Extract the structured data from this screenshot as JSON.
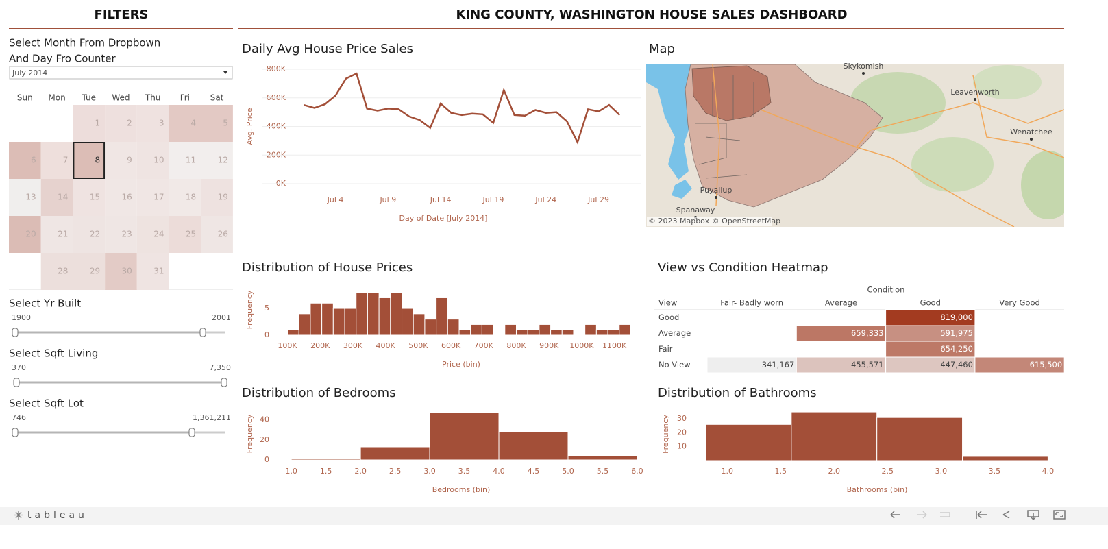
{
  "header": {
    "filters_title": "FILTERS",
    "title": "KING COUNTY, WASHINGTON HOUSE SALES DASHBOARD"
  },
  "filters": {
    "instruction": [
      "Select Month From Dropbown",
      "And Day Fro Counter"
    ],
    "month": "July 2014",
    "weekdays": [
      "Sun",
      "Mon",
      "Tue",
      "Wed",
      "Thu",
      "Fri",
      "Sat"
    ],
    "cells": [
      null,
      null,
      1,
      2,
      3,
      4,
      5,
      6,
      7,
      8,
      9,
      10,
      11,
      12,
      13,
      14,
      15,
      16,
      17,
      18,
      19,
      20,
      21,
      22,
      23,
      24,
      25,
      26,
      null,
      28,
      29,
      30,
      31
    ],
    "cell_colors": [
      null,
      null,
      "#eddddb",
      "#eee0de",
      "#efe2e0",
      "#e3c9c4",
      "#e3c9c4",
      "#dcbdb6",
      "#eedfdc",
      "#dcbdb6",
      "#f0e6e4",
      "#efe4e2",
      "#f2eeed",
      "#f2eeed",
      "#f0eeed",
      "#e6d2ce",
      "#efe3e1",
      "#f0e7e5",
      "#f0e6e4",
      "#f1e9e7",
      "#eee2e0",
      "#dbbcb5",
      "#efe6e4",
      "#eee4e2",
      "#efe6e4",
      "#eee3e0",
      "#ecdcd9",
      "#efe6e4",
      null,
      "#ecdfdc",
      "#ecdfdc",
      "#e3cbc6",
      "#efe4e2"
    ],
    "selected_day": 8,
    "sliders": [
      {
        "label": "Select Yr Built",
        "min": "1900",
        "max": "2001"
      },
      {
        "label": "Select Sqft Living",
        "min": "370",
        "max": "7,350"
      },
      {
        "label": "Select Sqft Lot",
        "min": "746",
        "max": "1,361,211"
      }
    ]
  },
  "chart_data": [
    {
      "type": "line",
      "title": "Daily Avg House Price Sales",
      "y_label": "Avg. Price",
      "x_label": "Day of Date [July 2014]",
      "x": [
        1,
        2,
        3,
        4,
        5,
        6,
        7,
        8,
        9,
        10,
        11,
        12,
        13,
        14,
        15,
        16,
        17,
        18,
        19,
        20,
        21,
        22,
        23,
        24,
        25,
        26,
        27,
        28,
        29,
        30,
        31
      ],
      "values": [
        550000,
        530000,
        555000,
        615000,
        735000,
        770000,
        525000,
        510000,
        525000,
        520000,
        470000,
        445000,
        390000,
        560000,
        495000,
        480000,
        490000,
        485000,
        425000,
        655000,
        480000,
        475000,
        515000,
        495000,
        500000,
        435000,
        290000,
        520000,
        505000,
        550000,
        480000
      ],
      "color": "#a34f38",
      "grid": true,
      "xlim": [
        -3,
        33
      ],
      "xticks": [
        {
          "value": 4,
          "label": "Jul 4"
        },
        {
          "value": 9,
          "label": "Jul 9"
        },
        {
          "value": 14,
          "label": "Jul 14"
        },
        {
          "value": 19,
          "label": "Jul 19"
        },
        {
          "value": 24,
          "label": "Jul 24"
        },
        {
          "value": 29,
          "label": "Jul 29"
        }
      ],
      "ylim": [
        0,
        800000
      ],
      "yticks": [
        {
          "value": 0,
          "label": "0K"
        },
        {
          "value": 200000,
          "label": "200K"
        },
        {
          "value": 400000,
          "label": "400K"
        },
        {
          "value": 600000,
          "label": "600K"
        },
        {
          "value": 800000,
          "label": "800K"
        }
      ]
    },
    {
      "type": "histogram",
      "title": "Distribution of House Prices",
      "y_label": "Frequency",
      "x_label": "Price (bin)",
      "bins": [
        100000,
        135000,
        170000,
        205000,
        240000,
        275000,
        310000,
        345000,
        380000,
        415000,
        450000,
        485000,
        520000,
        555000,
        590000,
        625000,
        660000,
        695000,
        730000,
        765000,
        800000,
        835000,
        870000,
        905000,
        940000,
        975000,
        1010000,
        1045000,
        1080000,
        1115000,
        1150000
      ],
      "values": [
        1,
        4,
        6,
        6,
        5,
        5,
        8,
        8,
        7,
        8,
        5,
        4,
        3,
        7,
        3,
        1,
        2,
        2,
        0,
        2,
        1,
        1,
        2,
        1,
        1,
        0,
        2,
        1,
        1,
        2
      ],
      "color": "#a34f38",
      "xlim": [
        80000,
        1170000
      ],
      "xticks": [
        {
          "value": 100000,
          "label": "100K"
        },
        {
          "value": 200000,
          "label": "200K"
        },
        {
          "value": 300000,
          "label": "300K"
        },
        {
          "value": 400000,
          "label": "400K"
        },
        {
          "value": 500000,
          "label": "500K"
        },
        {
          "value": 600000,
          "label": "600K"
        },
        {
          "value": 700000,
          "label": "700K"
        },
        {
          "value": 800000,
          "label": "800K"
        },
        {
          "value": 900000,
          "label": "900K"
        },
        {
          "value": 1000000,
          "label": "1000K"
        },
        {
          "value": 1100000,
          "label": "1100K"
        }
      ],
      "ylim": [
        0,
        9.5
      ],
      "yticks": [
        0,
        5
      ]
    },
    {
      "type": "histogram",
      "title": "Distribution of Bedrooms",
      "y_label": "Frequency",
      "x_label": "Bedrooms (bin)",
      "bins": [
        1,
        2,
        3,
        4,
        5,
        6
      ],
      "values": [
        1,
        13,
        47,
        28,
        4
      ],
      "color": "#a34f38",
      "xlim": [
        0.85,
        6.05
      ],
      "xticks": [
        {
          "value": 1,
          "label": "1.0"
        },
        {
          "value": 1.5,
          "label": "1.5"
        },
        {
          "value": 2,
          "label": "2.0"
        },
        {
          "value": 2.5,
          "label": "2.5"
        },
        {
          "value": 3,
          "label": "3.0"
        },
        {
          "value": 3.5,
          "label": "3.5"
        },
        {
          "value": 4,
          "label": "4.0"
        },
        {
          "value": 4.5,
          "label": "4.5"
        },
        {
          "value": 5,
          "label": "5.0"
        },
        {
          "value": 5.5,
          "label": "5.5"
        },
        {
          "value": 6,
          "label": "6.0"
        }
      ],
      "ylim": [
        0,
        52
      ],
      "yticks": [
        0,
        20,
        40
      ]
    },
    {
      "type": "histogram",
      "title": "Distribution of Bathrooms",
      "y_label": "Frequency",
      "x_label": "Bathrooms (bin)",
      "bins": [
        0.8,
        1.6,
        2.4,
        3.2,
        4
      ],
      "values": [
        26,
        35,
        31,
        3
      ],
      "color": "#a34f38",
      "xlim": [
        0.8,
        4.1
      ],
      "xticks": [
        {
          "value": 1,
          "label": "1.0"
        },
        {
          "value": 1.5,
          "label": "1.5"
        },
        {
          "value": 2,
          "label": "2.0"
        },
        {
          "value": 2.5,
          "label": "2.5"
        },
        {
          "value": 3,
          "label": "3.0"
        },
        {
          "value": 3.5,
          "label": "3.5"
        },
        {
          "value": 4,
          "label": "4.0"
        }
      ],
      "ylim": [
        0,
        38
      ],
      "yticks": [
        10,
        20,
        30
      ]
    },
    {
      "type": "heatmap",
      "title": "View vs Condition Heatmap",
      "x_label": "Condition",
      "y_label": "View",
      "columns": [
        "Fair- Badly worn",
        "Average",
        "Good",
        "Very Good"
      ],
      "rows": [
        "Good",
        "Average",
        "Fair",
        "No View"
      ],
      "values": [
        [
          null,
          null,
          819000,
          null
        ],
        [
          null,
          659333,
          591975,
          null
        ],
        [
          null,
          null,
          654250,
          null
        ],
        [
          341167,
          455571,
          447460,
          615500
        ]
      ],
      "value_labels": [
        [
          null,
          null,
          "819,000",
          null
        ],
        [
          null,
          "659,333",
          "591,975",
          null
        ],
        [
          null,
          null,
          "654,250",
          null
        ],
        [
          "341,167",
          "455,571",
          "447,460",
          "615,500"
        ]
      ],
      "color_low": "#eeeeee",
      "color_high": "#a33b20"
    }
  ],
  "map": {
    "title": "Map",
    "attribution": "© 2023 Mapbox  © OpenStreetMap",
    "places": [
      "Skykomish",
      "Leavenworth",
      "Wenatchee",
      "Puyallup",
      "Spanaway"
    ]
  },
  "footer": {
    "logo": "tableau"
  }
}
